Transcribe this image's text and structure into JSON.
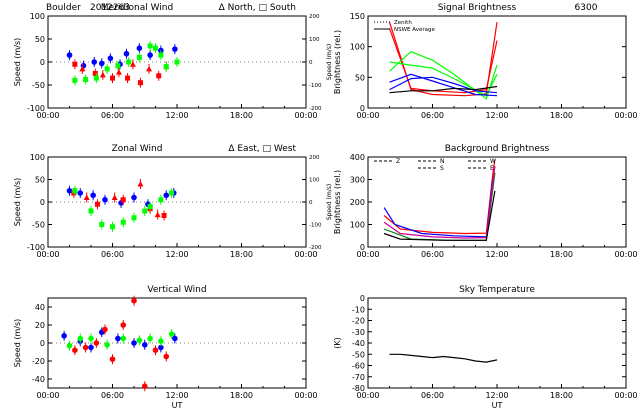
{
  "colors": {
    "red": "#ff0000",
    "green": "#00ff00",
    "blue": "#0000ff",
    "black": "#000000",
    "darkgreen": "#008800",
    "magenta": "#cc0099",
    "orange": "#ff8800"
  },
  "header": {
    "site": "Boulder",
    "date": "2012263"
  },
  "chart_data": [
    {
      "type": "scatter",
      "title": "Meridional Wind",
      "legend_text": "Δ North, □ South",
      "ylabel": "Speed (m/s)",
      "ylabel_right": "Speed (m/s)",
      "xlim": [
        0,
        24
      ],
      "ylim": [
        -100,
        100
      ],
      "ylim_right": [
        -200,
        200
      ],
      "yticks": [
        -100,
        -50,
        0,
        50,
        100
      ],
      "yticks_right": [
        -200,
        -100,
        0,
        100,
        200
      ],
      "xticks": [
        "00:00",
        "06:00",
        "12:00",
        "18:00",
        "00:00"
      ],
      "series": [
        {
          "color": "blue",
          "marker": "circle",
          "points": [
            [
              2,
              15
            ],
            [
              3.3,
              -8
            ],
            [
              4.3,
              0
            ],
            [
              5,
              -3
            ],
            [
              5.8,
              8
            ],
            [
              6.7,
              -5
            ],
            [
              7.3,
              18
            ],
            [
              8.5,
              30
            ],
            [
              9.5,
              15
            ],
            [
              10.5,
              25
            ],
            [
              11.8,
              28
            ]
          ]
        },
        {
          "color": "red",
          "marker": "mixed",
          "points": [
            [
              2.5,
              -5
            ],
            [
              3.2,
              -15
            ],
            [
              4.4,
              -25
            ],
            [
              5.1,
              -28
            ],
            [
              6,
              -35
            ],
            [
              6.6,
              -22
            ],
            [
              7.4,
              -35
            ],
            [
              7.9,
              -5
            ],
            [
              8.6,
              -45
            ],
            [
              9.4,
              -15
            ],
            [
              10.3,
              -30
            ],
            [
              11,
              -10
            ]
          ]
        },
        {
          "color": "green",
          "marker": "square",
          "points": [
            [
              2.5,
              -40
            ],
            [
              3.5,
              -38
            ],
            [
              4.5,
              -35
            ],
            [
              5.5,
              -15
            ],
            [
              6.5,
              -8
            ],
            [
              7.5,
              0
            ],
            [
              8.5,
              10
            ],
            [
              9.5,
              35
            ],
            [
              10,
              30
            ],
            [
              10.5,
              15
            ],
            [
              11,
              -10
            ],
            [
              12,
              0
            ]
          ]
        }
      ]
    },
    {
      "type": "line",
      "title": "Signal Brightness",
      "subtitle": "6300",
      "ylabel": "Brightness (rel.)",
      "xlim": [
        0,
        24
      ],
      "ylim": [
        0,
        150
      ],
      "yticks": [
        0,
        50,
        100,
        150
      ],
      "xticks": [
        "00:00",
        "06:00",
        "12:00",
        "18:00",
        "00:00"
      ],
      "legend": [
        {
          "label": "Zenith",
          "style": "dotted"
        },
        {
          "label": "NSWE Average",
          "style": "solid"
        }
      ],
      "series": [
        {
          "color": "red",
          "points": [
            [
              2,
              140
            ],
            [
              3,
              85
            ],
            [
              4,
              30
            ],
            [
              6,
              22
            ],
            [
              9,
              20
            ],
            [
              11,
              23
            ],
            [
              12,
              140
            ]
          ]
        },
        {
          "color": "red",
          "points": [
            [
              2,
              130
            ],
            [
              4,
              32
            ],
            [
              6,
              28
            ],
            [
              9,
              25
            ],
            [
              11,
              30
            ],
            [
              12,
              110
            ]
          ]
        },
        {
          "color": "green",
          "points": [
            [
              2,
              60
            ],
            [
              4,
              92
            ],
            [
              6,
              78
            ],
            [
              8,
              55
            ],
            [
              11,
              15
            ],
            [
              12,
              70
            ]
          ]
        },
        {
          "color": "green",
          "points": [
            [
              2,
              75
            ],
            [
              4,
              70
            ],
            [
              6,
              65
            ],
            [
              8,
              48
            ],
            [
              11,
              20
            ],
            [
              12,
              55
            ]
          ]
        },
        {
          "color": "blue",
          "points": [
            [
              2,
              30
            ],
            [
              4,
              48
            ],
            [
              6,
              50
            ],
            [
              8,
              40
            ],
            [
              10,
              28
            ],
            [
              12,
              25
            ]
          ]
        },
        {
          "color": "blue",
          "points": [
            [
              2,
              42
            ],
            [
              4,
              55
            ],
            [
              6,
              44
            ],
            [
              8,
              33
            ],
            [
              10,
              22
            ],
            [
              12,
              20
            ]
          ]
        },
        {
          "color": "black",
          "points": [
            [
              2,
              25
            ],
            [
              4,
              28
            ],
            [
              6,
              28
            ],
            [
              8,
              32
            ],
            [
              10,
              30
            ],
            [
              12,
              35
            ]
          ]
        }
      ]
    },
    {
      "type": "scatter",
      "title": "Zonal Wind",
      "legend_text": "Δ East, □ West",
      "ylabel": "Speed (m/s)",
      "ylabel_right": "Speed (m/s)",
      "xlim": [
        0,
        24
      ],
      "ylim": [
        -100,
        100
      ],
      "ylim_right": [
        -200,
        200
      ],
      "yticks": [
        -100,
        -50,
        0,
        50,
        100
      ],
      "yticks_right": [
        -200,
        -100,
        0,
        100,
        200
      ],
      "xticks": [
        "00:00",
        "06:00",
        "12:00",
        "18:00",
        "00:00"
      ],
      "series": [
        {
          "color": "blue",
          "marker": "circle",
          "points": [
            [
              2,
              25
            ],
            [
              3,
              20
            ],
            [
              4.2,
              15
            ],
            [
              5.3,
              5
            ],
            [
              6.8,
              -2
            ],
            [
              8,
              10
            ],
            [
              9.3,
              -5
            ],
            [
              11,
              15
            ],
            [
              11.7,
              20
            ]
          ]
        },
        {
          "color": "red",
          "marker": "mixed",
          "points": [
            [
              2.4,
              20
            ],
            [
              3.6,
              10
            ],
            [
              4.6,
              -5
            ],
            [
              6.2,
              10
            ],
            [
              7,
              5
            ],
            [
              8.6,
              40
            ],
            [
              9.5,
              -15
            ],
            [
              10.2,
              -28
            ],
            [
              10.8,
              -30
            ]
          ]
        },
        {
          "color": "green",
          "marker": "square",
          "points": [
            [
              2.5,
              25
            ],
            [
              4,
              -20
            ],
            [
              5,
              -50
            ],
            [
              6,
              -55
            ],
            [
              7,
              -45
            ],
            [
              8,
              -35
            ],
            [
              9,
              -20
            ],
            [
              9.5,
              -10
            ],
            [
              10.5,
              5
            ],
            [
              11.5,
              20
            ]
          ]
        }
      ]
    },
    {
      "type": "line",
      "title": "Background Brightness",
      "ylabel": "Brightness (rel.)",
      "xlim": [
        0,
        24
      ],
      "ylim": [
        0,
        400
      ],
      "yticks": [
        0,
        100,
        200,
        300,
        400
      ],
      "xticks": [
        "00:00",
        "06:00",
        "12:00",
        "18:00",
        "00:00"
      ],
      "legend": [
        "Z",
        "N",
        "S",
        "W",
        "E"
      ],
      "series": [
        {
          "color": "red",
          "points": [
            [
              1.5,
              140
            ],
            [
              3,
              80
            ],
            [
              6,
              65
            ],
            [
              9,
              60
            ],
            [
              11,
              62
            ],
            [
              11.6,
              320
            ],
            [
              11.8,
              390
            ]
          ]
        },
        {
          "color": "blue",
          "points": [
            [
              1.5,
              175
            ],
            [
              2.5,
              100
            ],
            [
              5,
              60
            ],
            [
              8,
              50
            ],
            [
              11,
              45
            ],
            [
              11.6,
              300
            ]
          ]
        },
        {
          "color": "darkgreen",
          "points": [
            [
              1.5,
              80
            ],
            [
              4,
              35
            ],
            [
              8,
              30
            ],
            [
              11,
              30
            ],
            [
              11.8,
              330
            ]
          ]
        },
        {
          "color": "magenta",
          "points": [
            [
              1.5,
              110
            ],
            [
              3,
              60
            ],
            [
              6,
              45
            ],
            [
              9,
              40
            ],
            [
              11,
              42
            ],
            [
              11.8,
              360
            ]
          ]
        },
        {
          "color": "black",
          "points": [
            [
              1.5,
              60
            ],
            [
              3,
              35
            ],
            [
              7,
              30
            ],
            [
              11,
              30
            ],
            [
              11.8,
              250
            ]
          ]
        }
      ]
    },
    {
      "type": "scatter",
      "title": "Vertical Wind",
      "ylabel": "Speed (m/s)",
      "xlabel": "UT",
      "xlim": [
        0,
        24
      ],
      "ylim": [
        -50,
        50
      ],
      "yticks": [
        -40,
        -20,
        0,
        20,
        40
      ],
      "xticks": [
        "00:00",
        "06:00",
        "12:00",
        "18:00",
        "00:00"
      ],
      "series": [
        {
          "color": "blue",
          "marker": "circle",
          "points": [
            [
              1.5,
              8
            ],
            [
              3,
              2
            ],
            [
              4,
              -5
            ],
            [
              5,
              12
            ],
            [
              6.5,
              5
            ],
            [
              8,
              0
            ],
            [
              9,
              -2
            ],
            [
              10.5,
              -5
            ],
            [
              11.8,
              5
            ]
          ]
        },
        {
          "color": "red",
          "marker": "circle",
          "points": [
            [
              2.5,
              -8
            ],
            [
              3.5,
              -5
            ],
            [
              4.5,
              0
            ],
            [
              5.3,
              15
            ],
            [
              6,
              -18
            ],
            [
              7,
              20
            ],
            [
              8,
              47
            ],
            [
              9,
              -48
            ],
            [
              10,
              -8
            ],
            [
              11,
              -15
            ]
          ]
        },
        {
          "color": "green",
          "marker": "circle",
          "points": [
            [
              2,
              -3
            ],
            [
              3,
              5
            ],
            [
              4,
              5
            ],
            [
              5.5,
              -2
            ],
            [
              7,
              5
            ],
            [
              8.5,
              3
            ],
            [
              9.5,
              5
            ],
            [
              10.5,
              2
            ],
            [
              11.5,
              10
            ]
          ]
        }
      ]
    },
    {
      "type": "line",
      "title": "Sky Temperature",
      "ylabel": "(K)",
      "xlabel": "UT",
      "xlim": [
        0,
        24
      ],
      "ylim": [
        -80,
        0
      ],
      "yticks": [
        -80,
        -70,
        -60,
        -50,
        -40,
        -30,
        -20,
        -10,
        0
      ],
      "xticks": [
        "00:00",
        "06:00",
        "12:00",
        "18:00",
        "00:00"
      ],
      "series": [
        {
          "color": "black",
          "points": [
            [
              2,
              -50
            ],
            [
              3,
              -50
            ],
            [
              4,
              -51
            ],
            [
              5,
              -52
            ],
            [
              6,
              -53
            ],
            [
              7,
              -52
            ],
            [
              8,
              -53
            ],
            [
              9,
              -54
            ],
            [
              10,
              -56
            ],
            [
              11,
              -57
            ],
            [
              12,
              -55
            ]
          ]
        }
      ]
    }
  ]
}
